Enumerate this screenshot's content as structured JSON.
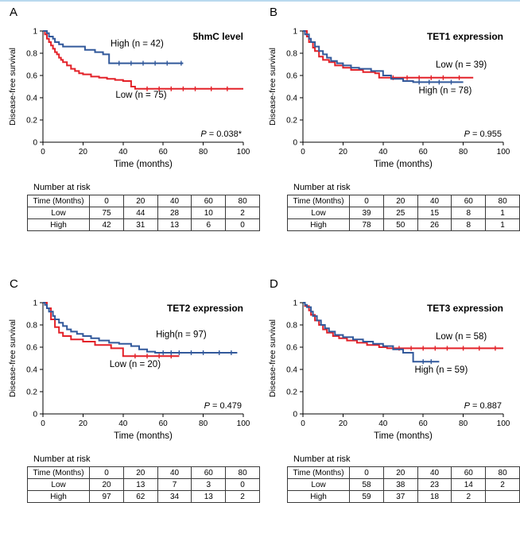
{
  "page": {
    "background": "#ffffff",
    "accent_border": "#b9d9ee"
  },
  "chart_data": [
    {
      "type": "line",
      "subtype": "kaplan-meier-step",
      "panel": "A",
      "title": "5hmC level",
      "xlabel": "Time (months)",
      "ylabel": "Disease-free survival",
      "xlim": [
        0,
        100
      ],
      "ylim": [
        0,
        1
      ],
      "xticks": [
        0,
        20,
        40,
        60,
        80,
        100
      ],
      "xtick_labels": [
        "0",
        "20",
        "40",
        "60",
        "80",
        "100"
      ],
      "yticks": [
        0,
        0.2,
        0.4,
        0.6,
        0.8,
        1
      ],
      "ytick_labels": [
        "0",
        "0.2",
        "0.4",
        "0.6",
        "0.8",
        "1"
      ],
      "p": {
        "italic": "P",
        "rest": " = 0.038*"
      },
      "series": [
        {
          "name": "Low",
          "label": "Low (n = 75)",
          "color": "#e32128",
          "label_anchor": [
            49,
            0.4
          ],
          "steps": [
            [
              0,
              1
            ],
            [
              1,
              0.97
            ],
            [
              2,
              0.93
            ],
            [
              3,
              0.9
            ],
            [
              4,
              0.87
            ],
            [
              5,
              0.84
            ],
            [
              6,
              0.81
            ],
            [
              7,
              0.79
            ],
            [
              8,
              0.76
            ],
            [
              9,
              0.74
            ],
            [
              10,
              0.72
            ],
            [
              12,
              0.69
            ],
            [
              14,
              0.66
            ],
            [
              16,
              0.64
            ],
            [
              18,
              0.62
            ],
            [
              20,
              0.61
            ],
            [
              24,
              0.59
            ],
            [
              28,
              0.58
            ],
            [
              32,
              0.57
            ],
            [
              36,
              0.56
            ],
            [
              40,
              0.55
            ],
            [
              44,
              0.5
            ],
            [
              46,
              0.48
            ],
            [
              100,
              0.48
            ]
          ],
          "censor_times": [
            52,
            58,
            64,
            70,
            76,
            84,
            92
          ]
        },
        {
          "name": "High",
          "label": "High (n = 42)",
          "color": "#32599b",
          "label_anchor": [
            47,
            0.86
          ],
          "steps": [
            [
              0,
              1
            ],
            [
              2,
              0.98
            ],
            [
              3,
              0.95
            ],
            [
              5,
              0.93
            ],
            [
              6,
              0.9
            ],
            [
              8,
              0.88
            ],
            [
              10,
              0.86
            ],
            [
              21,
              0.83
            ],
            [
              26,
              0.81
            ],
            [
              30,
              0.79
            ],
            [
              33,
              0.71
            ],
            [
              70,
              0.71
            ]
          ],
          "censor_times": [
            38,
            44,
            50,
            56,
            62,
            69
          ]
        }
      ],
      "risk_table": {
        "caption": "Number at risk",
        "columns": [
          "Time (Months)",
          "0",
          "20",
          "40",
          "60",
          "80"
        ],
        "rows": [
          [
            "Low",
            "75",
            "44",
            "28",
            "10",
            "2"
          ],
          [
            "High",
            "42",
            "31",
            "13",
            "6",
            "0"
          ]
        ]
      }
    },
    {
      "type": "line",
      "subtype": "kaplan-meier-step",
      "panel": "B",
      "title": "TET1 expression",
      "xlabel": "Time (months)",
      "ylabel": "Disease-free survival",
      "xlim": [
        0,
        100
      ],
      "ylim": [
        0,
        1
      ],
      "xticks": [
        0,
        20,
        40,
        60,
        80,
        100
      ],
      "xtick_labels": [
        "0",
        "20",
        "40",
        "60",
        "80",
        "100"
      ],
      "yticks": [
        0,
        0.2,
        0.4,
        0.6,
        0.8,
        1
      ],
      "ytick_labels": [
        "0",
        "0.2",
        "0.4",
        "0.6",
        "0.8",
        "1"
      ],
      "p": {
        "italic": "P",
        "rest": " = 0.955"
      },
      "series": [
        {
          "name": "Low",
          "label": "Low (n = 39)",
          "color": "#e32128",
          "label_anchor": [
            79,
            0.67
          ],
          "steps": [
            [
              0,
              1
            ],
            [
              2,
              0.95
            ],
            [
              3,
              0.9
            ],
            [
              5,
              0.85
            ],
            [
              6,
              0.82
            ],
            [
              8,
              0.77
            ],
            [
              10,
              0.74
            ],
            [
              13,
              0.72
            ],
            [
              16,
              0.69
            ],
            [
              20,
              0.67
            ],
            [
              24,
              0.65
            ],
            [
              30,
              0.63
            ],
            [
              36,
              0.62
            ],
            [
              38,
              0.58
            ],
            [
              85,
              0.58
            ]
          ],
          "censor_times": [
            45,
            52,
            58,
            64,
            70,
            78
          ]
        },
        {
          "name": "High",
          "label": "High (n = 78)",
          "color": "#32599b",
          "label_anchor": [
            71,
            0.44
          ],
          "steps": [
            [
              0,
              1
            ],
            [
              1,
              0.97
            ],
            [
              3,
              0.93
            ],
            [
              4,
              0.9
            ],
            [
              6,
              0.86
            ],
            [
              8,
              0.82
            ],
            [
              10,
              0.79
            ],
            [
              12,
              0.76
            ],
            [
              14,
              0.73
            ],
            [
              17,
              0.71
            ],
            [
              20,
              0.69
            ],
            [
              24,
              0.67
            ],
            [
              28,
              0.66
            ],
            [
              34,
              0.64
            ],
            [
              40,
              0.6
            ],
            [
              44,
              0.57
            ],
            [
              50,
              0.55
            ],
            [
              55,
              0.54
            ],
            [
              80,
              0.54
            ]
          ],
          "censor_times": [
            58,
            63,
            68,
            74
          ]
        }
      ],
      "risk_table": {
        "caption": "Number at risk",
        "columns": [
          "Time (Months)",
          "0",
          "20",
          "40",
          "60",
          "80"
        ],
        "rows": [
          [
            "Low",
            "39",
            "25",
            "15",
            "8",
            "1"
          ],
          [
            "High",
            "78",
            "50",
            "26",
            "8",
            "1"
          ]
        ]
      }
    },
    {
      "type": "line",
      "subtype": "kaplan-meier-step",
      "panel": "C",
      "title": "TET2 expression",
      "xlabel": "Time (months)",
      "ylabel": "Disease-free survival",
      "xlim": [
        0,
        100
      ],
      "ylim": [
        0,
        1
      ],
      "xticks": [
        0,
        20,
        40,
        60,
        80,
        100
      ],
      "xtick_labels": [
        "0",
        "20",
        "40",
        "60",
        "80",
        "100"
      ],
      "yticks": [
        0,
        0.2,
        0.4,
        0.6,
        0.8,
        1
      ],
      "ytick_labels": [
        "0",
        "0.2",
        "0.4",
        "0.6",
        "0.8",
        "1"
      ],
      "p": {
        "italic": "P",
        "rest": " = 0.479"
      },
      "series": [
        {
          "name": "Low",
          "label": "Low (n = 20)",
          "color": "#e32128",
          "label_anchor": [
            46,
            0.42
          ],
          "steps": [
            [
              0,
              1
            ],
            [
              2,
              0.95
            ],
            [
              4,
              0.85
            ],
            [
              6,
              0.78
            ],
            [
              8,
              0.73
            ],
            [
              10,
              0.7
            ],
            [
              14,
              0.67
            ],
            [
              20,
              0.65
            ],
            [
              26,
              0.62
            ],
            [
              34,
              0.59
            ],
            [
              40,
              0.52
            ],
            [
              68,
              0.52
            ]
          ],
          "censor_times": [
            46,
            52,
            58,
            64
          ]
        },
        {
          "name": "High",
          "label": "High(n = 97)",
          "color": "#32599b",
          "label_anchor": [
            69,
            0.69
          ],
          "steps": [
            [
              0,
              1
            ],
            [
              1,
              0.98
            ],
            [
              2,
              0.95
            ],
            [
              3,
              0.92
            ],
            [
              5,
              0.88
            ],
            [
              6,
              0.85
            ],
            [
              8,
              0.82
            ],
            [
              10,
              0.79
            ],
            [
              12,
              0.76
            ],
            [
              14,
              0.74
            ],
            [
              17,
              0.72
            ],
            [
              20,
              0.7
            ],
            [
              24,
              0.68
            ],
            [
              28,
              0.66
            ],
            [
              33,
              0.64
            ],
            [
              38,
              0.63
            ],
            [
              44,
              0.61
            ],
            [
              48,
              0.58
            ],
            [
              52,
              0.56
            ],
            [
              56,
              0.55
            ],
            [
              97,
              0.55
            ]
          ],
          "censor_times": [
            60,
            64,
            68,
            74,
            80,
            88,
            94
          ]
        }
      ],
      "risk_table": {
        "caption": "Number at risk",
        "columns": [
          "Time (Months)",
          "0",
          "20",
          "40",
          "60",
          "80"
        ],
        "rows": [
          [
            "Low",
            "20",
            "13",
            "7",
            "3",
            "0"
          ],
          [
            "High",
            "97",
            "62",
            "34",
            "13",
            "2"
          ]
        ]
      }
    },
    {
      "type": "line",
      "subtype": "kaplan-meier-step",
      "panel": "D",
      "title": "TET3 expression",
      "xlabel": "Time (months)",
      "ylabel": "Disease-free survival",
      "xlim": [
        0,
        100
      ],
      "ylim": [
        0,
        1
      ],
      "xticks": [
        0,
        20,
        40,
        60,
        80,
        100
      ],
      "xtick_labels": [
        "0",
        "20",
        "40",
        "60",
        "80",
        "100"
      ],
      "yticks": [
        0,
        0.2,
        0.4,
        0.6,
        0.8,
        1
      ],
      "ytick_labels": [
        "0",
        "0.2",
        "0.4",
        "0.6",
        "0.8",
        "1"
      ],
      "p": {
        "italic": "P",
        "rest": " = 0.887"
      },
      "series": [
        {
          "name": "Low",
          "label": "Low (n = 58)",
          "color": "#e32128",
          "label_anchor": [
            79,
            0.67
          ],
          "steps": [
            [
              0,
              1
            ],
            [
              1,
              0.97
            ],
            [
              3,
              0.93
            ],
            [
              4,
              0.89
            ],
            [
              6,
              0.84
            ],
            [
              8,
              0.8
            ],
            [
              10,
              0.76
            ],
            [
              12,
              0.73
            ],
            [
              15,
              0.7
            ],
            [
              18,
              0.68
            ],
            [
              22,
              0.66
            ],
            [
              27,
              0.64
            ],
            [
              32,
              0.62
            ],
            [
              38,
              0.6
            ],
            [
              42,
              0.59
            ],
            [
              100,
              0.59
            ]
          ],
          "censor_times": [
            48,
            54,
            60,
            66,
            72,
            80,
            88,
            96
          ]
        },
        {
          "name": "High",
          "label": "High (n = 59)",
          "color": "#32599b",
          "label_anchor": [
            69,
            0.37
          ],
          "steps": [
            [
              0,
              1
            ],
            [
              1,
              0.98
            ],
            [
              2,
              0.96
            ],
            [
              4,
              0.92
            ],
            [
              5,
              0.88
            ],
            [
              7,
              0.84
            ],
            [
              9,
              0.8
            ],
            [
              11,
              0.77
            ],
            [
              13,
              0.74
            ],
            [
              16,
              0.71
            ],
            [
              20,
              0.69
            ],
            [
              25,
              0.67
            ],
            [
              30,
              0.65
            ],
            [
              35,
              0.63
            ],
            [
              40,
              0.61
            ],
            [
              45,
              0.58
            ],
            [
              50,
              0.55
            ],
            [
              55,
              0.47
            ],
            [
              68,
              0.47
            ]
          ],
          "censor_times": [
            60,
            64
          ]
        }
      ],
      "risk_table": {
        "caption": "Number at risk",
        "columns": [
          "Time (Months)",
          "0",
          "20",
          "40",
          "60",
          "80"
        ],
        "rows": [
          [
            "Low",
            "58",
            "38",
            "23",
            "14",
            "2"
          ],
          [
            "High",
            "59",
            "37",
            "18",
            "2",
            ""
          ]
        ]
      }
    }
  ]
}
